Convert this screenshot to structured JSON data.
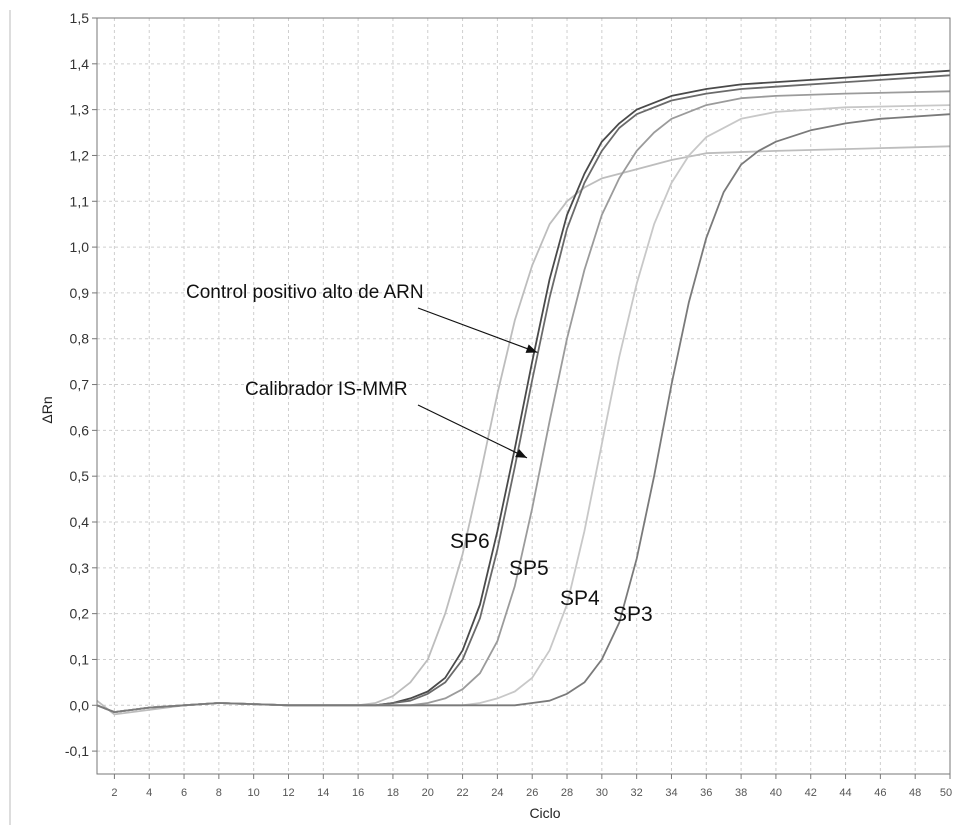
{
  "chart_data": {
    "type": "line",
    "title": "",
    "xlabel": "Ciclo",
    "ylabel": "ΔRn",
    "xlim": [
      1,
      50
    ],
    "ylim": [
      -0.15,
      1.5
    ],
    "x_ticks": [
      2,
      4,
      6,
      8,
      10,
      12,
      14,
      16,
      18,
      20,
      22,
      24,
      26,
      28,
      30,
      32,
      34,
      36,
      38,
      40,
      42,
      44,
      46,
      48,
      50
    ],
    "y_ticks": [
      -0.1,
      0.0,
      0.1,
      0.2,
      0.3,
      0.4,
      0.5,
      0.6,
      0.7,
      0.8,
      0.9,
      1.0,
      1.1,
      1.2,
      1.3,
      1.4,
      1.5
    ],
    "y_tick_labels": [
      "-0,1",
      "0,0",
      "0,1",
      "0,2",
      "0,3",
      "0,4",
      "0,5",
      "0,6",
      "0,7",
      "0,8",
      "0,9",
      "1,0",
      "1,1",
      "1,2",
      "1,3",
      "1,4",
      "1,5"
    ],
    "grid": true,
    "legend": "none",
    "series": [
      {
        "color": "#bdbdbd",
        "points": [
          [
            1,
            0.01
          ],
          [
            2,
            -0.02
          ],
          [
            4,
            -0.01
          ],
          [
            6,
            0.0
          ],
          [
            8,
            0.005
          ],
          [
            12,
            0.0
          ],
          [
            16,
            0.0
          ],
          [
            17,
            0.005
          ],
          [
            18,
            0.02
          ],
          [
            19,
            0.05
          ],
          [
            20,
            0.1
          ],
          [
            21,
            0.2
          ],
          [
            22,
            0.33
          ],
          [
            23,
            0.5
          ],
          [
            24,
            0.68
          ],
          [
            25,
            0.84
          ],
          [
            26,
            0.96
          ],
          [
            27,
            1.05
          ],
          [
            28,
            1.1
          ],
          [
            29,
            1.13
          ],
          [
            30,
            1.15
          ],
          [
            32,
            1.17
          ],
          [
            34,
            1.19
          ],
          [
            36,
            1.205
          ],
          [
            40,
            1.21
          ],
          [
            45,
            1.215
          ],
          [
            50,
            1.22
          ]
        ]
      },
      {
        "color": "#4a4a4a",
        "points": [
          [
            1,
            0.0
          ],
          [
            2,
            -0.015
          ],
          [
            4,
            -0.005
          ],
          [
            6,
            0.0
          ],
          [
            8,
            0.005
          ],
          [
            12,
            0.0
          ],
          [
            17,
            0.0
          ],
          [
            18,
            0.005
          ],
          [
            19,
            0.015
          ],
          [
            20,
            0.03
          ],
          [
            21,
            0.06
          ],
          [
            22,
            0.12
          ],
          [
            23,
            0.22
          ],
          [
            24,
            0.38
          ],
          [
            25,
            0.56
          ],
          [
            26,
            0.75
          ],
          [
            27,
            0.93
          ],
          [
            28,
            1.07
          ],
          [
            29,
            1.16
          ],
          [
            30,
            1.23
          ],
          [
            31,
            1.27
          ],
          [
            32,
            1.3
          ],
          [
            34,
            1.33
          ],
          [
            36,
            1.345
          ],
          [
            38,
            1.355
          ],
          [
            40,
            1.36
          ],
          [
            44,
            1.37
          ],
          [
            48,
            1.38
          ],
          [
            50,
            1.385
          ]
        ]
      },
      {
        "color": "#6a6a6a",
        "points": [
          [
            1,
            0.0
          ],
          [
            2,
            -0.015
          ],
          [
            4,
            -0.005
          ],
          [
            6,
            0.0
          ],
          [
            8,
            0.005
          ],
          [
            12,
            0.0
          ],
          [
            17,
            0.0
          ],
          [
            18,
            0.005
          ],
          [
            19,
            0.01
          ],
          [
            20,
            0.025
          ],
          [
            21,
            0.05
          ],
          [
            22,
            0.1
          ],
          [
            23,
            0.19
          ],
          [
            24,
            0.34
          ],
          [
            25,
            0.52
          ],
          [
            26,
            0.71
          ],
          [
            27,
            0.89
          ],
          [
            28,
            1.04
          ],
          [
            29,
            1.14
          ],
          [
            30,
            1.21
          ],
          [
            31,
            1.26
          ],
          [
            32,
            1.29
          ],
          [
            34,
            1.32
          ],
          [
            36,
            1.335
          ],
          [
            38,
            1.345
          ],
          [
            40,
            1.35
          ],
          [
            44,
            1.36
          ],
          [
            48,
            1.37
          ],
          [
            50,
            1.375
          ]
        ]
      },
      {
        "color": "#9b9b9b",
        "points": [
          [
            1,
            0.0
          ],
          [
            2,
            -0.015
          ],
          [
            4,
            -0.005
          ],
          [
            6,
            0.0
          ],
          [
            8,
            0.005
          ],
          [
            12,
            0.0
          ],
          [
            19,
            0.0
          ],
          [
            20,
            0.005
          ],
          [
            21,
            0.015
          ],
          [
            22,
            0.035
          ],
          [
            23,
            0.07
          ],
          [
            24,
            0.14
          ],
          [
            25,
            0.26
          ],
          [
            26,
            0.43
          ],
          [
            27,
            0.62
          ],
          [
            28,
            0.8
          ],
          [
            29,
            0.95
          ],
          [
            30,
            1.07
          ],
          [
            31,
            1.15
          ],
          [
            32,
            1.21
          ],
          [
            33,
            1.25
          ],
          [
            34,
            1.28
          ],
          [
            36,
            1.31
          ],
          [
            38,
            1.325
          ],
          [
            40,
            1.33
          ],
          [
            44,
            1.335
          ],
          [
            50,
            1.34
          ]
        ]
      },
      {
        "color": "#c8c8c8",
        "points": [
          [
            1,
            0.0
          ],
          [
            2,
            -0.015
          ],
          [
            4,
            -0.005
          ],
          [
            6,
            0.0
          ],
          [
            8,
            0.005
          ],
          [
            12,
            0.0
          ],
          [
            22,
            0.0
          ],
          [
            23,
            0.005
          ],
          [
            24,
            0.015
          ],
          [
            25,
            0.03
          ],
          [
            26,
            0.06
          ],
          [
            27,
            0.12
          ],
          [
            28,
            0.22
          ],
          [
            29,
            0.38
          ],
          [
            30,
            0.57
          ],
          [
            31,
            0.76
          ],
          [
            32,
            0.92
          ],
          [
            33,
            1.05
          ],
          [
            34,
            1.14
          ],
          [
            35,
            1.2
          ],
          [
            36,
            1.24
          ],
          [
            38,
            1.28
          ],
          [
            40,
            1.295
          ],
          [
            44,
            1.305
          ],
          [
            50,
            1.31
          ]
        ]
      },
      {
        "color": "#7a7a7a",
        "points": [
          [
            1,
            0.0
          ],
          [
            2,
            -0.015
          ],
          [
            4,
            -0.005
          ],
          [
            6,
            0.0
          ],
          [
            8,
            0.005
          ],
          [
            12,
            0.0
          ],
          [
            25,
            0.0
          ],
          [
            26,
            0.005
          ],
          [
            27,
            0.01
          ],
          [
            28,
            0.025
          ],
          [
            29,
            0.05
          ],
          [
            30,
            0.1
          ],
          [
            31,
            0.18
          ],
          [
            32,
            0.32
          ],
          [
            33,
            0.5
          ],
          [
            34,
            0.7
          ],
          [
            35,
            0.88
          ],
          [
            36,
            1.02
          ],
          [
            37,
            1.12
          ],
          [
            38,
            1.18
          ],
          [
            39,
            1.21
          ],
          [
            40,
            1.23
          ],
          [
            42,
            1.255
          ],
          [
            44,
            1.27
          ],
          [
            46,
            1.28
          ],
          [
            50,
            1.29
          ]
        ]
      }
    ],
    "annotations": [
      {
        "text": "Control positivo alto de ARN",
        "arrow_to": [
          26.3,
          0.77
        ]
      },
      {
        "text": "Calibrador IS-MMR",
        "arrow_to": [
          25.7,
          0.54
        ]
      }
    ],
    "curve_labels": [
      "SP6",
      "SP5",
      "SP4",
      "SP3"
    ]
  }
}
